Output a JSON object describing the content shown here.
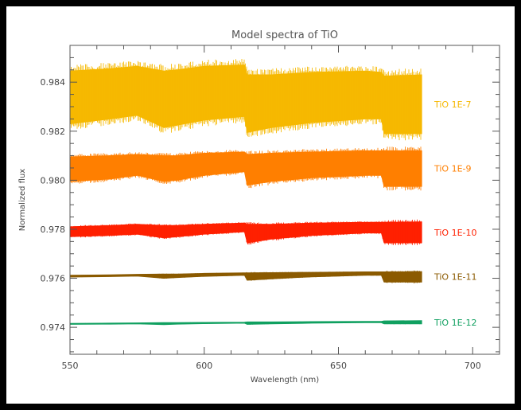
{
  "chart_data": {
    "type": "line",
    "title": "Model spectra of TiO",
    "xlabel": "Wavelength (nm)",
    "ylabel": "Normalized flux",
    "xlim": [
      550,
      710
    ],
    "ylim": [
      0.9729,
      0.9855
    ],
    "xticks": [
      550,
      600,
      650,
      700
    ],
    "yticks": [
      0.974,
      0.976,
      0.978,
      0.98,
      0.982,
      0.984
    ],
    "ytick_labels": [
      "0.974",
      "0.976",
      "0.978",
      "0.980",
      "0.982",
      "0.984"
    ],
    "grid": false,
    "legend_position": "right",
    "series": [
      {
        "name": "TiO 1E-7",
        "color": "#f6b800",
        "x": [
          550,
          565,
          575,
          585,
          590,
          600,
          615,
          616,
          625,
          640,
          660,
          666,
          667,
          681
        ],
        "y_upper": [
          0.98445,
          0.98455,
          0.98465,
          0.98445,
          0.9845,
          0.98465,
          0.9847,
          0.9843,
          0.9843,
          0.9844,
          0.98445,
          0.9844,
          0.98425,
          0.9843
        ],
        "y_lower": [
          0.9823,
          0.9825,
          0.98265,
          0.98215,
          0.98225,
          0.98245,
          0.9826,
          0.98195,
          0.98215,
          0.98235,
          0.9825,
          0.9825,
          0.9819,
          0.9819
        ]
      },
      {
        "name": "TiO 1E-9",
        "color": "#ff7f00",
        "x": [
          550,
          565,
          575,
          585,
          590,
          600,
          615,
          616,
          625,
          640,
          660,
          666,
          667,
          681
        ],
        "y_upper": [
          0.98095,
          0.981,
          0.98105,
          0.981,
          0.981,
          0.9811,
          0.98115,
          0.98105,
          0.9811,
          0.98115,
          0.9812,
          0.9812,
          0.9812,
          0.9812
        ],
        "y_lower": [
          0.97995,
          0.98005,
          0.9802,
          0.97995,
          0.98,
          0.9802,
          0.98035,
          0.9798,
          0.97995,
          0.9801,
          0.9802,
          0.9802,
          0.97975,
          0.97975
        ]
      },
      {
        "name": "TiO 1E-10",
        "color": "#ff2000",
        "x": [
          550,
          565,
          575,
          585,
          590,
          600,
          615,
          616,
          625,
          640,
          660,
          666,
          667,
          681
        ],
        "y_upper": [
          0.9781,
          0.97815,
          0.9782,
          0.97815,
          0.97815,
          0.9782,
          0.97825,
          0.9782,
          0.9782,
          0.97825,
          0.97828,
          0.97828,
          0.97828,
          0.9783
        ],
        "y_lower": [
          0.9777,
          0.97775,
          0.9778,
          0.97765,
          0.9777,
          0.9778,
          0.9779,
          0.97745,
          0.9776,
          0.97775,
          0.97785,
          0.97785,
          0.97745,
          0.97745
        ]
      },
      {
        "name": "TiO 1E-11",
        "color": "#8b5a00",
        "x": [
          550,
          565,
          575,
          585,
          590,
          600,
          615,
          616,
          625,
          640,
          660,
          666,
          667,
          681
        ],
        "y_upper": [
          0.97612,
          0.97614,
          0.97616,
          0.97617,
          0.97617,
          0.9762,
          0.97622,
          0.97622,
          0.97623,
          0.97624,
          0.97626,
          0.97626,
          0.97626,
          0.97627
        ],
        "y_lower": [
          0.97605,
          0.97607,
          0.97609,
          0.976,
          0.97603,
          0.97608,
          0.97612,
          0.97592,
          0.97598,
          0.97606,
          0.97612,
          0.97612,
          0.97585,
          0.97585
        ]
      },
      {
        "name": "TiO 1E-12",
        "color": "#10a060",
        "x": [
          550,
          565,
          575,
          585,
          590,
          600,
          615,
          616,
          625,
          640,
          660,
          666,
          667,
          681
        ],
        "y_upper": [
          0.97416,
          0.97417,
          0.97418,
          0.97419,
          0.97419,
          0.9742,
          0.97421,
          0.97422,
          0.97422,
          0.97423,
          0.97424,
          0.97424,
          0.97426,
          0.97427
        ],
        "y_lower": [
          0.97412,
          0.97413,
          0.97414,
          0.97411,
          0.97413,
          0.97415,
          0.97417,
          0.97412,
          0.97414,
          0.97417,
          0.97419,
          0.97419,
          0.97414,
          0.97414
        ]
      }
    ]
  }
}
